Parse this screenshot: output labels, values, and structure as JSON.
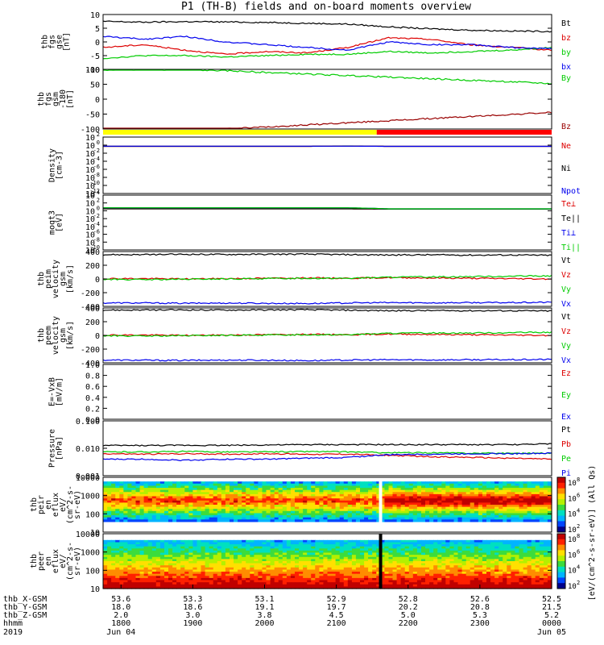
{
  "title": "P1 (TH-B) fields and on-board moments overview",
  "chart_data": {
    "type": "line",
    "title": "P1 (TH-B) fields and on-board moments overview",
    "x_axis": {
      "label": "hhmm",
      "year": "2019",
      "ticks": [
        "1800",
        "1900",
        "2000",
        "2100",
        "2200",
        "2300",
        "0000"
      ],
      "dates": {
        "1800": "Jun 04",
        "0000": "Jun 05"
      },
      "range": [
        "2019-06-04 17:45",
        "2019-06-05 00:00"
      ],
      "ephemeris": [
        {
          "name": "thb_X-GSM",
          "values": [
            "53.6",
            "53.3",
            "53.1",
            "52.9",
            "52.8",
            "52.6",
            "52.5"
          ]
        },
        {
          "name": "thb_Y-GSM",
          "values": [
            "18.0",
            "18.6",
            "19.1",
            "19.7",
            "20.2",
            "20.8",
            "21.5"
          ]
        },
        {
          "name": "thb_Z-GSM",
          "values": [
            "2.0",
            "3.0",
            "3.8",
            "4.5",
            "5.0",
            "5.3",
            "5.2"
          ]
        }
      ]
    },
    "panels": [
      {
        "id": "fgs",
        "ylabel": [
          "thb",
          "fgs",
          "gse",
          "[nT]"
        ],
        "ylim": [
          -10,
          10
        ],
        "yticks": [
          "10",
          "5",
          "0",
          "-5",
          "-10"
        ],
        "series": [
          {
            "name": "Bt",
            "color": "#000000",
            "values": [
              7.5,
              7.2,
              7.4,
              7.3,
              7.1,
              6.8,
              6.5,
              5.5,
              4.8,
              4.3,
              4.0,
              3.8
            ]
          },
          {
            "name": "bz",
            "color": "#dd0000",
            "values": [
              -2,
              -1,
              -3,
              -4.5,
              -3.5,
              -4,
              -2,
              1.5,
              1.0,
              -1,
              -2,
              -3
            ]
          },
          {
            "name": "by",
            "color": "#00cc00",
            "values": [
              -6,
              -5,
              -5,
              -5.5,
              -5,
              -4.5,
              -4.5,
              -3.5,
              -4,
              -3.5,
              -3,
              -2
            ]
          },
          {
            "name": "bx",
            "color": "#0000ee",
            "values": [
              2,
              1,
              2,
              0,
              -1,
              -2,
              -3,
              0,
              -1,
              -1,
              -2,
              -2.5
            ]
          }
        ]
      },
      {
        "id": "fgs_gsm",
        "ylabel": [
          "thb",
          "fgs",
          "gsm",
          "-180",
          "[nT]"
        ],
        "ylim": [
          -120,
          110
        ],
        "yticks": [
          "100",
          "50",
          "0",
          "-50",
          "-100"
        ],
        "series": [
          {
            "name": "By",
            "color": "#00cc00",
            "values": [
              108,
              108,
              108,
              105,
              98,
              92,
              86,
              80,
              74,
              68,
              62,
              55
            ]
          },
          {
            "name": "Bz",
            "color": "#990000",
            "values": [
              -125,
              -125,
              -125,
              -120,
              -112,
              -104,
              -96,
              -88,
              -80,
              -72,
              -64,
              -56
            ]
          }
        ]
      },
      {
        "id": "density",
        "ylabel": [
          "Density",
          "[cm-3]"
        ],
        "ylim_exp": [
          -12,
          2
        ],
        "yticks": [
          "10^2",
          "10^0",
          "10^-2",
          "10^-4",
          "10^-6",
          "10^-8",
          "10^-10",
          "10^-12"
        ],
        "series": [
          {
            "name": "Ne",
            "color": "#dd0000",
            "values": [
              0.5,
              0.5,
              0.5,
              0.5,
              0.5,
              0.5,
              0.6,
              0.5,
              0.5,
              0.5,
              0.5,
              0.5
            ]
          },
          {
            "name": "Ni",
            "color": "#000000",
            "values": [
              0.5,
              0.5,
              0.5,
              0.5,
              0.5,
              0.5,
              0.6,
              0.5,
              0.5,
              0.5,
              0.5,
              0.5
            ]
          },
          {
            "name": "Npot",
            "color": "#0000ee",
            "values": [
              0.55,
              0.55,
              0.55,
              0.55,
              0.55,
              0.55,
              0.55,
              0.5,
              0.5,
              0.5,
              0.5,
              0.5
            ]
          }
        ]
      },
      {
        "id": "temperature",
        "ylabel": [
          "moqt3",
          "[eV]"
        ],
        "ylim_exp": [
          -12,
          4
        ],
        "yticks": [
          "10^4",
          "10^2",
          "10^0",
          "10^-2",
          "10^-4",
          "10^-6",
          "10^-8",
          "10^-10"
        ],
        "series": [
          {
            "name": "Te⊥",
            "color": "#dd0000",
            "values": [
              1,
              1,
              1,
              1,
              1,
              1,
              1,
              0.8,
              0.8,
              0.8,
              0.8,
              0.8
            ]
          },
          {
            "name": "Te||",
            "color": "#000000",
            "values": [
              1,
              1,
              1,
              1,
              1,
              1,
              1,
              0.8,
              0.8,
              0.8,
              0.8,
              0.8
            ]
          },
          {
            "name": "Ti⊥",
            "color": "#0000ee",
            "values": [
              2,
              2,
              2,
              2,
              2,
              2,
              2,
              1,
              1,
              1,
              1,
              1
            ]
          },
          {
            "name": "Ti||",
            "color": "#00cc00",
            "values": [
              2,
              2,
              2,
              2,
              2,
              2,
              2,
              1,
              1,
              1,
              1,
              1
            ]
          }
        ]
      },
      {
        "id": "peim",
        "ylabel": [
          "thb",
          "peim",
          "velocity",
          "gsm",
          "[km/s]"
        ],
        "ylim": [
          -400,
          400
        ],
        "yticks": [
          "400",
          "200",
          "0",
          "-200",
          "-400"
        ],
        "series": [
          {
            "name": "Vt",
            "color": "#000000",
            "values": [
              355,
              355,
              360,
              358,
              360,
              362,
              355,
              350,
              352,
              348,
              350,
              345
            ]
          },
          {
            "name": "Vz",
            "color": "#dd0000",
            "values": [
              5,
              5,
              0,
              5,
              10,
              15,
              10,
              20,
              15,
              10,
              5,
              0
            ]
          },
          {
            "name": "Vy",
            "color": "#00cc00",
            "values": [
              -5,
              -10,
              -5,
              0,
              5,
              10,
              10,
              25,
              30,
              35,
              40,
              45
            ]
          },
          {
            "name": "Vx",
            "color": "#0000ee",
            "values": [
              -350,
              -350,
              -355,
              -352,
              -355,
              -358,
              -350,
              -345,
              -348,
              -345,
              -345,
              -340
            ]
          }
        ]
      },
      {
        "id": "peem",
        "ylabel": [
          "thb",
          "peem",
          "velocity",
          "gsm",
          "[km/s]"
        ],
        "ylim": [
          -400,
          400
        ],
        "yticks": [
          "400",
          "200",
          "0",
          "-200",
          "-400"
        ],
        "series": [
          {
            "name": "Vt",
            "color": "#000000",
            "values": [
              370,
              370,
              372,
              370,
              372,
              375,
              368,
              360,
              362,
              360,
              360,
              356
            ]
          },
          {
            "name": "Vz",
            "color": "#dd0000",
            "values": [
              5,
              5,
              0,
              5,
              10,
              15,
              10,
              20,
              15,
              10,
              5,
              0
            ]
          },
          {
            "name": "Vy",
            "color": "#00cc00",
            "values": [
              -5,
              -10,
              -5,
              0,
              5,
              10,
              10,
              30,
              35,
              35,
              40,
              45
            ]
          },
          {
            "name": "Vx",
            "color": "#0000ee",
            "values": [
              -360,
              -362,
              -365,
              -360,
              -362,
              -368,
              -360,
              -355,
              -358,
              -355,
              -355,
              -350
            ]
          }
        ]
      },
      {
        "id": "efield",
        "ylabel": [
          "E=-VxB",
          "[mV/m]"
        ],
        "ylim": [
          0,
          1
        ],
        "yticks": [
          "1.0",
          "0.8",
          "0.6",
          "0.4",
          "0.2",
          "0.0"
        ],
        "series": [
          {
            "name": "Ez",
            "color": "#dd0000",
            "values": []
          },
          {
            "name": "Ey",
            "color": "#00cc00",
            "values": []
          },
          {
            "name": "Ex",
            "color": "#0000ee",
            "values": []
          }
        ]
      },
      {
        "id": "pressure",
        "ylabel": [
          "Pressure",
          "[nPa]"
        ],
        "log": true,
        "ylim": [
          0.001,
          1
        ],
        "yticks": [
          "0.100",
          "0.010",
          "0.001"
        ],
        "series": [
          {
            "name": "Pt",
            "color": "#000000",
            "values": [
              0.045,
              0.045,
              0.046,
              0.046,
              0.048,
              0.05,
              0.05,
              0.05,
              0.05,
              0.05,
              0.05,
              0.055
            ]
          },
          {
            "name": "Pb",
            "color": "#dd0000",
            "values": [
              0.016,
              0.015,
              0.016,
              0.015,
              0.016,
              0.015,
              0.015,
              0.013,
              0.011,
              0.01,
              0.009,
              0.008
            ]
          },
          {
            "name": "Pe",
            "color": "#00cc00",
            "values": [
              0.02,
              0.02,
              0.021,
              0.02,
              0.02,
              0.021,
              0.02,
              0.018,
              0.018,
              0.017,
              0.017,
              0.017
            ]
          },
          {
            "name": "Pi",
            "color": "#0000ee",
            "values": [
              0.008,
              0.008,
              0.007,
              0.008,
              0.008,
              0.009,
              0.01,
              0.014,
              0.015,
              0.016,
              0.016,
              0.017
            ]
          }
        ]
      },
      {
        "id": "peir",
        "type": "heatmap",
        "ylabel": [
          "thb",
          "peir",
          "en",
          "eflux",
          "eV/",
          "(cm^2-s-",
          "sr-eV)"
        ],
        "yticks": [
          "10000",
          "1000",
          "100",
          "10"
        ]
      },
      {
        "id": "peer",
        "type": "heatmap",
        "ylabel": [
          "thb",
          "peer",
          "en",
          "eflux",
          "eV/",
          "(cm^2-s-",
          "sr-eV)"
        ],
        "yticks": [
          "10000",
          "1000",
          "100",
          "10"
        ]
      }
    ],
    "colorbar": {
      "label": "[eV/(cm^2-s-sr-eV)] (All Qs)",
      "ticks_upper": [
        "10^8",
        "10^6",
        "10^4",
        "10^2"
      ],
      "ticks_lower": [
        "10^8",
        "10^6",
        "10^4",
        "10^2"
      ]
    },
    "mode_bar": {
      "yellow_until": "2146",
      "red_from": "2146"
    }
  }
}
